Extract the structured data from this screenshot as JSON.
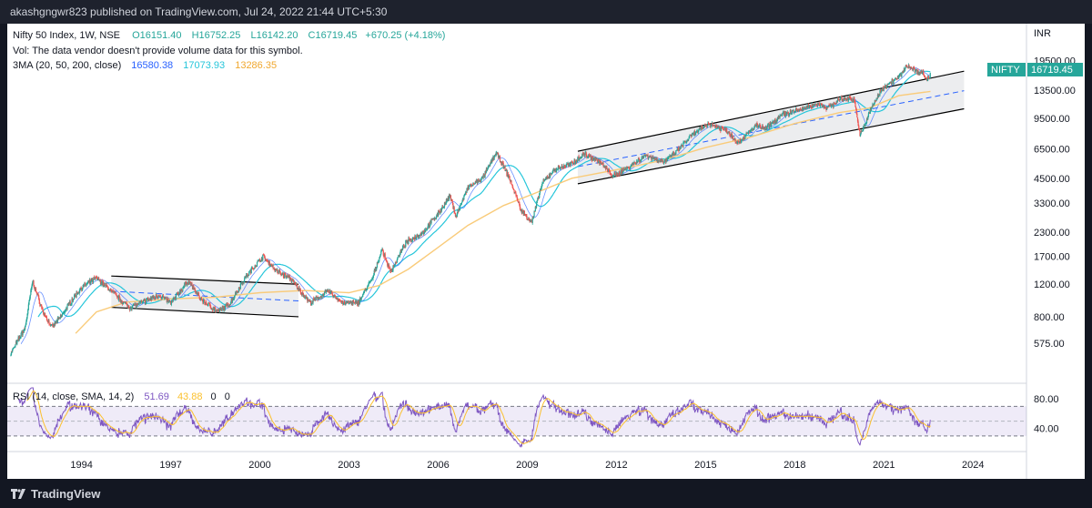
{
  "header": {
    "publish_line": "akashgngwr823 published on TradingView.com, Jul 24, 2022 21:44 UTC+5:30"
  },
  "footer": {
    "brand": "TradingView"
  },
  "colors": {
    "bull": "#26a69a",
    "bear": "#ef5350",
    "ma20": "#2962ff",
    "ma50": "#26c6da",
    "ma200": "#f9cb7a",
    "rsi": "#7e57c2",
    "rsi_ma": "#fbc02d",
    "channel": "#000000",
    "channel_fill": "#e6e7ea",
    "badge": "#26a69a"
  },
  "legend": {
    "title": "Nifty 50 Index, 1W, NSE",
    "open": "O16151.40",
    "high": "H16752.25",
    "low": "L16142.20",
    "close": "C16719.45",
    "change": "+670.25 (+4.18%)",
    "vol_note": "Vol: The data vendor doesn't provide volume data for this symbol.",
    "ma_label": "3MA (20, 50, 200, close)",
    "ma20_value": "16580.38",
    "ma50_value": "17073.93",
    "ma200_value": "13286.35"
  },
  "rsi_legend": {
    "label": "RSI (14, close, SMA, 14, 2)",
    "rsi_value": "51.69",
    "rsi_ma_value": "43.88",
    "extra1": "0",
    "extra2": "0"
  },
  "price_scale": {
    "currency": "INR",
    "symbol_badge": "NIFTY",
    "last_price": "16719.45"
  },
  "chart_data": {
    "type": "candlestick",
    "symbol": "Nifty 50 Index",
    "interval": "1W",
    "exchange": "NSE",
    "scale": "log",
    "y_ticks": [
      575,
      800,
      1200,
      1700,
      2300,
      3300,
      4500,
      6500,
      9500,
      13500,
      19500
    ],
    "y_tick_labels": [
      "575.00",
      "800.00",
      "1200.00",
      "1700.00",
      "2300.00",
      "3300.00",
      "4500.00",
      "6500.00",
      "9500.00",
      "13500.00",
      "19500.00"
    ],
    "x_ticks": [
      "1994",
      "1997",
      "2000",
      "2003",
      "2006",
      "2009",
      "2012",
      "2015",
      "2018",
      "2021",
      "2024"
    ],
    "x_range": [
      1991.5,
      2025.8
    ],
    "price_path": [
      [
        1991.6,
        500
      ],
      [
        1992.1,
        700
      ],
      [
        1992.35,
        1250
      ],
      [
        1992.7,
        850
      ],
      [
        1993.0,
        700
      ],
      [
        1993.3,
        800
      ],
      [
        1993.7,
        1000
      ],
      [
        1994.0,
        1150
      ],
      [
        1994.5,
        1300
      ],
      [
        1995.0,
        1100
      ],
      [
        1995.6,
        900
      ],
      [
        1996.0,
        950
      ],
      [
        1996.6,
        1050
      ],
      [
        1997.0,
        950
      ],
      [
        1997.6,
        1250
      ],
      [
        1998.0,
        1000
      ],
      [
        1998.6,
        850
      ],
      [
        1999.0,
        950
      ],
      [
        1999.5,
        1300
      ],
      [
        2000.1,
        1700
      ],
      [
        2000.6,
        1400
      ],
      [
        2001.0,
        1300
      ],
      [
        2001.7,
        950
      ],
      [
        2002.3,
        1100
      ],
      [
        2002.8,
        950
      ],
      [
        2003.3,
        950
      ],
      [
        2003.8,
        1300
      ],
      [
        2004.1,
        1850
      ],
      [
        2004.4,
        1400
      ],
      [
        2004.9,
        2000
      ],
      [
        2005.5,
        2300
      ],
      [
        2006.0,
        2900
      ],
      [
        2006.4,
        3600
      ],
      [
        2006.6,
        2800
      ],
      [
        2007.0,
        4000
      ],
      [
        2007.5,
        4500
      ],
      [
        2007.95,
        6200
      ],
      [
        2008.4,
        4500
      ],
      [
        2008.8,
        3000
      ],
      [
        2009.15,
        2600
      ],
      [
        2009.5,
        4200
      ],
      [
        2009.9,
        5000
      ],
      [
        2010.5,
        5400
      ],
      [
        2010.9,
        6100
      ],
      [
        2011.4,
        5600
      ],
      [
        2011.9,
        4600
      ],
      [
        2012.5,
        5300
      ],
      [
        2013.0,
        6000
      ],
      [
        2013.6,
        5500
      ],
      [
        2014.0,
        6200
      ],
      [
        2014.5,
        7600
      ],
      [
        2015.1,
        8900
      ],
      [
        2015.7,
        8200
      ],
      [
        2016.1,
        7000
      ],
      [
        2016.7,
        8700
      ],
      [
        2017.0,
        8300
      ],
      [
        2017.6,
        10000
      ],
      [
        2018.1,
        10500
      ],
      [
        2018.8,
        11400
      ],
      [
        2019.1,
        10800
      ],
      [
        2019.5,
        12000
      ],
      [
        2020.0,
        12200
      ],
      [
        2020.2,
        7600
      ],
      [
        2020.6,
        11000
      ],
      [
        2021.0,
        14200
      ],
      [
        2021.5,
        15800
      ],
      [
        2021.8,
        18500
      ],
      [
        2022.1,
        17000
      ],
      [
        2022.3,
        16800
      ],
      [
        2022.45,
        15300
      ],
      [
        2022.57,
        16720
      ]
    ],
    "ma200_path": [
      [
        1993.8,
        650
      ],
      [
        1994.5,
        850
      ],
      [
        1995.5,
        960
      ],
      [
        1997.0,
        1000
      ],
      [
        1998.5,
        1020
      ],
      [
        2000.0,
        1080
      ],
      [
        2001.5,
        1110
      ],
      [
        2003.0,
        1080
      ],
      [
        2004.0,
        1180
      ],
      [
        2005.0,
        1450
      ],
      [
        2006.0,
        1900
      ],
      [
        2007.0,
        2500
      ],
      [
        2008.2,
        3200
      ],
      [
        2009.2,
        3700
      ],
      [
        2010.5,
        4500
      ],
      [
        2012.0,
        5000
      ],
      [
        2013.5,
        5600
      ],
      [
        2015.0,
        6600
      ],
      [
        2016.5,
        7500
      ],
      [
        2018.0,
        8900
      ],
      [
        2019.5,
        10200
      ],
      [
        2020.5,
        10800
      ],
      [
        2021.5,
        12600
      ],
      [
        2022.57,
        13286
      ]
    ],
    "channels": [
      {
        "upper": [
          [
            1995.0,
            1330
          ],
          [
            2001.3,
            1200
          ]
        ],
        "lower": [
          [
            1995.0,
            900
          ],
          [
            2001.3,
            800
          ]
        ],
        "mid": [
          [
            1995.0,
            1100
          ],
          [
            2001.3,
            975
          ]
        ]
      },
      {
        "upper": [
          [
            2010.7,
            6300
          ],
          [
            2023.7,
            17100
          ]
        ],
        "lower": [
          [
            2010.7,
            4200
          ],
          [
            2023.7,
            10700
          ]
        ],
        "mid": [
          [
            2010.7,
            5200
          ],
          [
            2023.7,
            13400
          ]
        ]
      }
    ],
    "rsi": {
      "type": "line",
      "y_ticks": [
        40,
        80
      ],
      "y_tick_labels": [
        "40.00",
        "80.00"
      ],
      "band": [
        30,
        70
      ],
      "last": 51.69,
      "ma_last": 43.88
    }
  }
}
